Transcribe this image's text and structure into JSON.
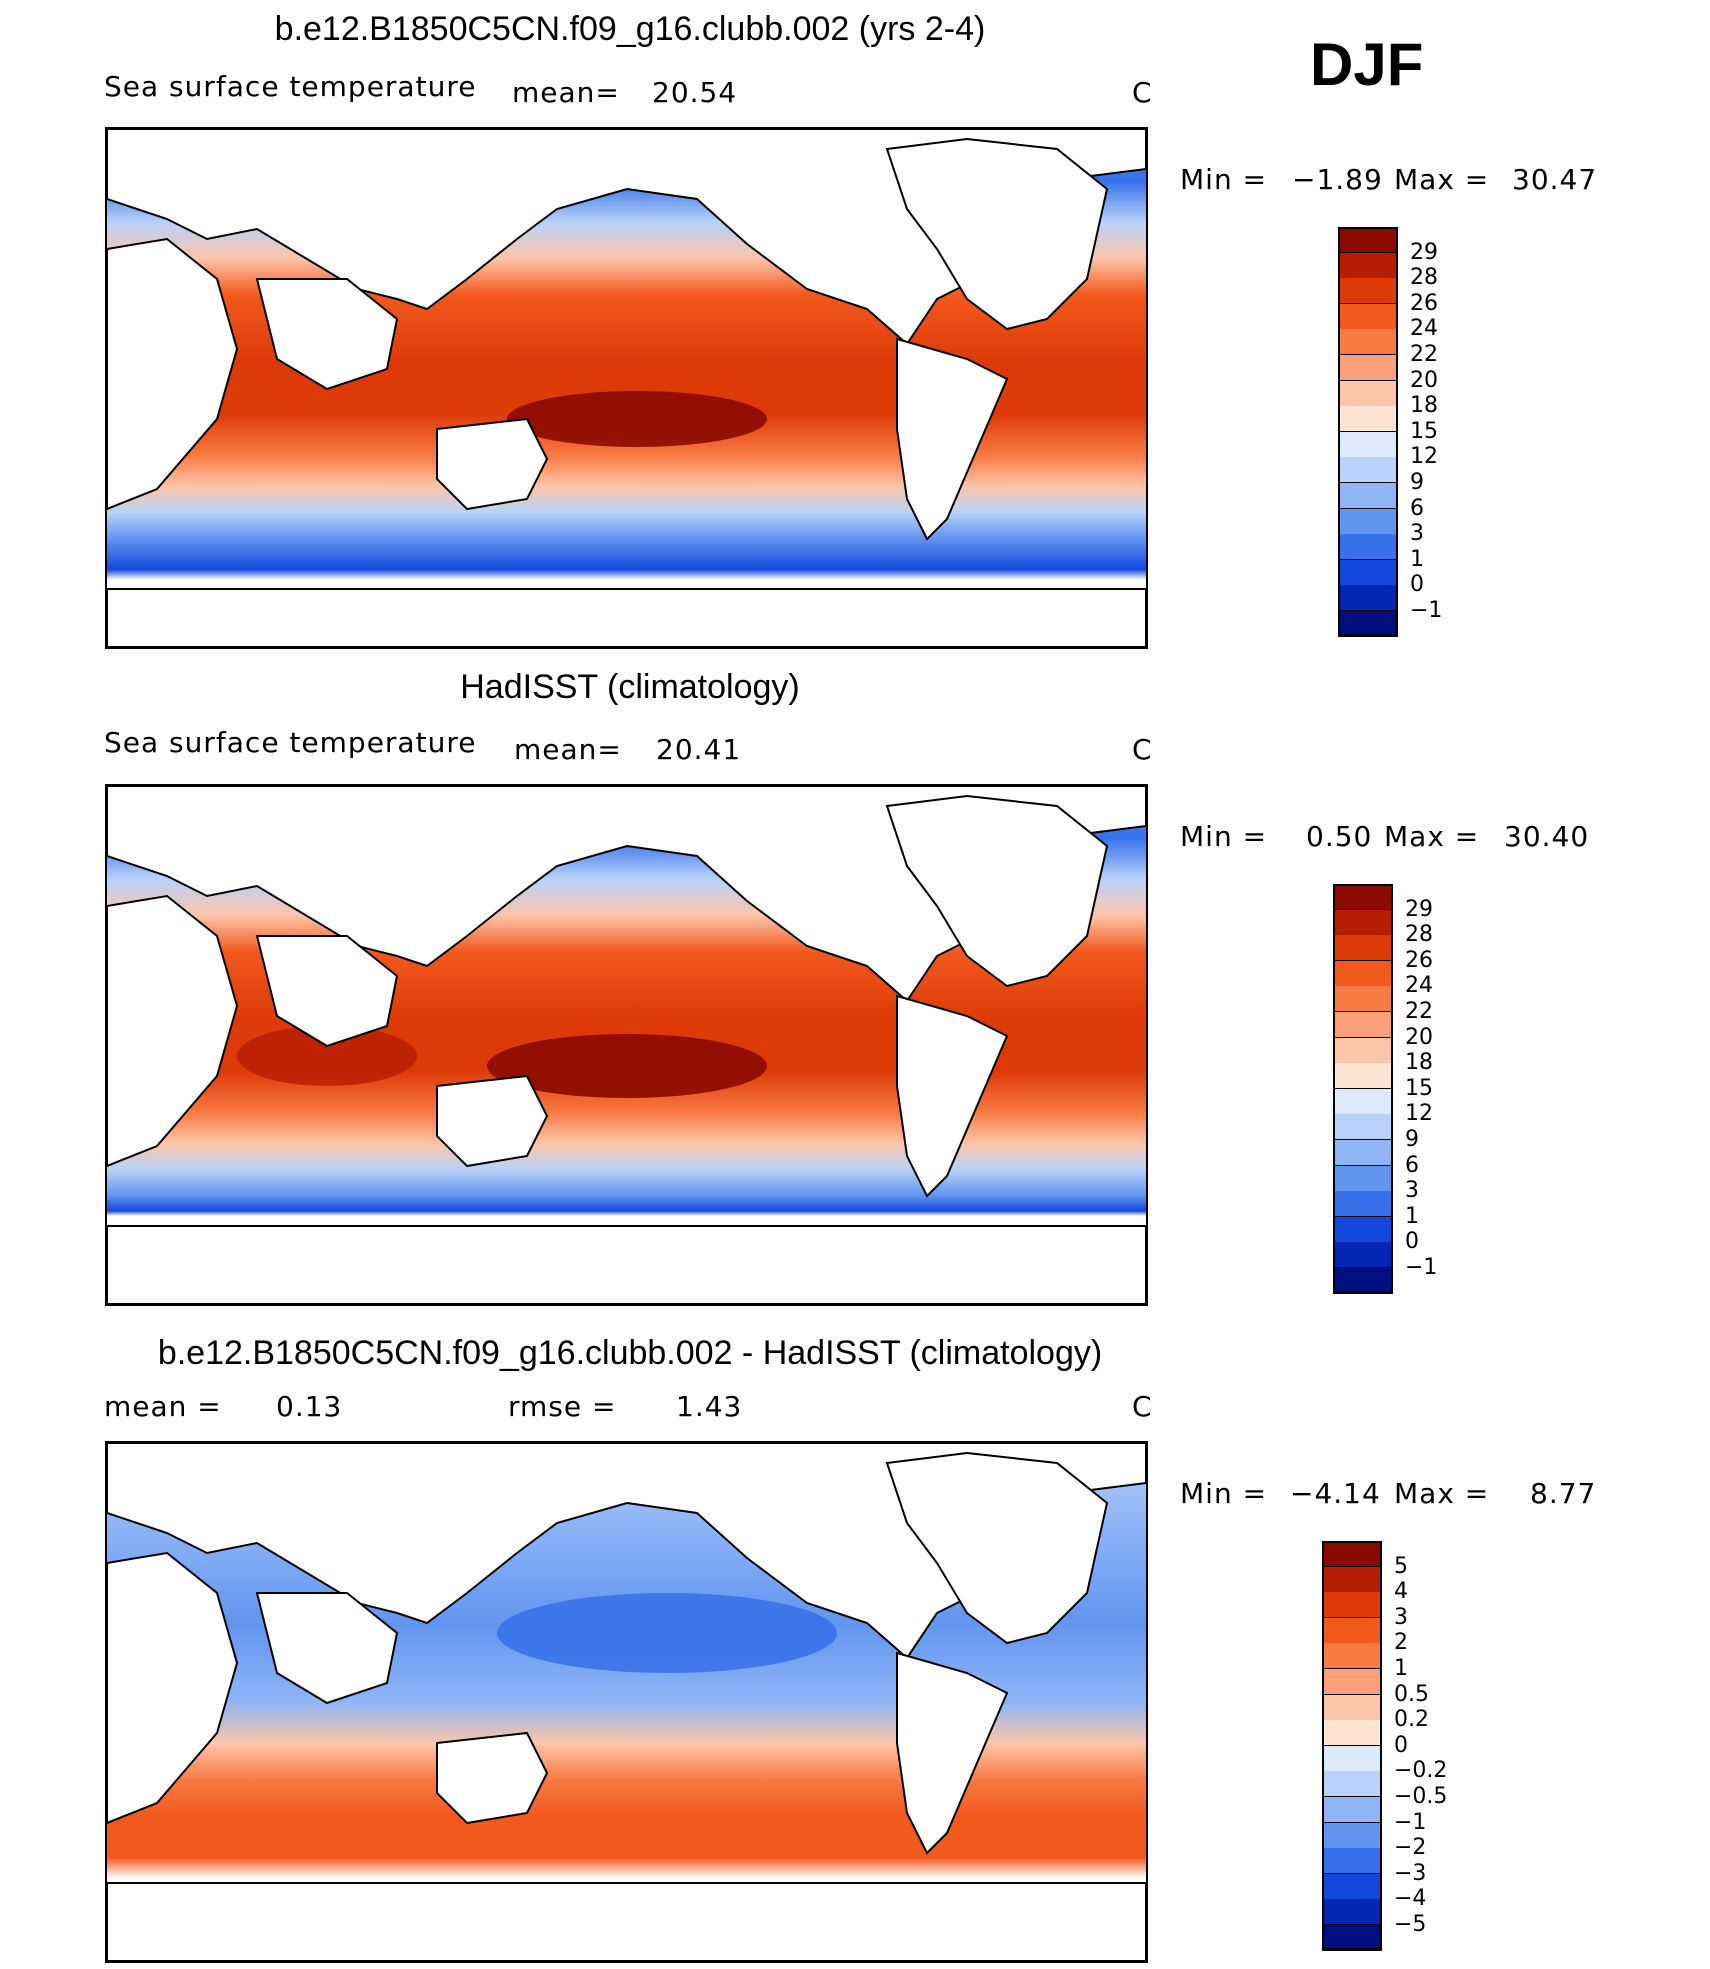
{
  "season": "DJF",
  "chart_data": [
    {
      "type": "heatmap",
      "title": "b.e12.B1850C5CN.f09_g16.clubb.002 (yrs 2-4)",
      "left_label": "Sea surface temperature",
      "stat_label": "mean=",
      "stat_value": "20.54",
      "units": "C",
      "min_label": "Min =",
      "min_value": "−1.89",
      "max_label": "Max =",
      "max_value": "30.47",
      "colorbar": {
        "labels": [
          "29",
          "28",
          "26",
          "24",
          "22",
          "20",
          "18",
          "15",
          "12",
          "9",
          "6",
          "3",
          "1",
          "0",
          "−1"
        ],
        "colors": [
          "#8a0a00",
          "#b51d02",
          "#dd3a08",
          "#f2591d",
          "#f87a44",
          "#fba07a",
          "#fdc5a8",
          "#fee4d4",
          "#dbe9fb",
          "#b8d2f9",
          "#8fb5f6",
          "#6295f0",
          "#3670ea",
          "#1347dc",
          "#0525b4",
          "#000f7f"
        ]
      }
    },
    {
      "type": "heatmap",
      "title": "HadISST (climatology)",
      "left_label": "Sea surface temperature",
      "stat_label": "mean=",
      "stat_value": "20.41",
      "units": "C",
      "min_label": "Min =",
      "min_value": "0.50",
      "max_label": "Max =",
      "max_value": "30.40",
      "colorbar": {
        "labels": [
          "29",
          "28",
          "26",
          "24",
          "22",
          "20",
          "18",
          "15",
          "12",
          "9",
          "6",
          "3",
          "1",
          "0",
          "−1"
        ],
        "colors": [
          "#8a0a00",
          "#b51d02",
          "#dd3a08",
          "#f2591d",
          "#f87a44",
          "#fba07a",
          "#fdc5a8",
          "#fee4d4",
          "#dbe9fb",
          "#b8d2f9",
          "#8fb5f6",
          "#6295f0",
          "#3670ea",
          "#1347dc",
          "#0525b4",
          "#000f7f"
        ]
      }
    },
    {
      "type": "heatmap",
      "title": "b.e12.B1850C5CN.f09_g16.clubb.002 - HadISST (climatology)",
      "stat_label": "mean =",
      "stat_value": "0.13",
      "rmse_label": "rmse =",
      "rmse_value": "1.43",
      "units": "C",
      "min_label": "Min =",
      "min_value": "−4.14",
      "max_label": "Max =",
      "max_value": "8.77",
      "colorbar": {
        "labels": [
          "5",
          "4",
          "3",
          "2",
          "1",
          "0.5",
          "0.2",
          "0",
          "−0.2",
          "−0.5",
          "−1",
          "−2",
          "−3",
          "−4",
          "−5"
        ],
        "colors": [
          "#8a0a00",
          "#b51d02",
          "#dd3a08",
          "#f2591d",
          "#f87a44",
          "#fba07a",
          "#fdc5a8",
          "#fee4d4",
          "#dbe9fb",
          "#b8d2f9",
          "#8fb5f6",
          "#6295f0",
          "#3670ea",
          "#1347dc",
          "#0525b4",
          "#000f7f"
        ]
      }
    }
  ]
}
